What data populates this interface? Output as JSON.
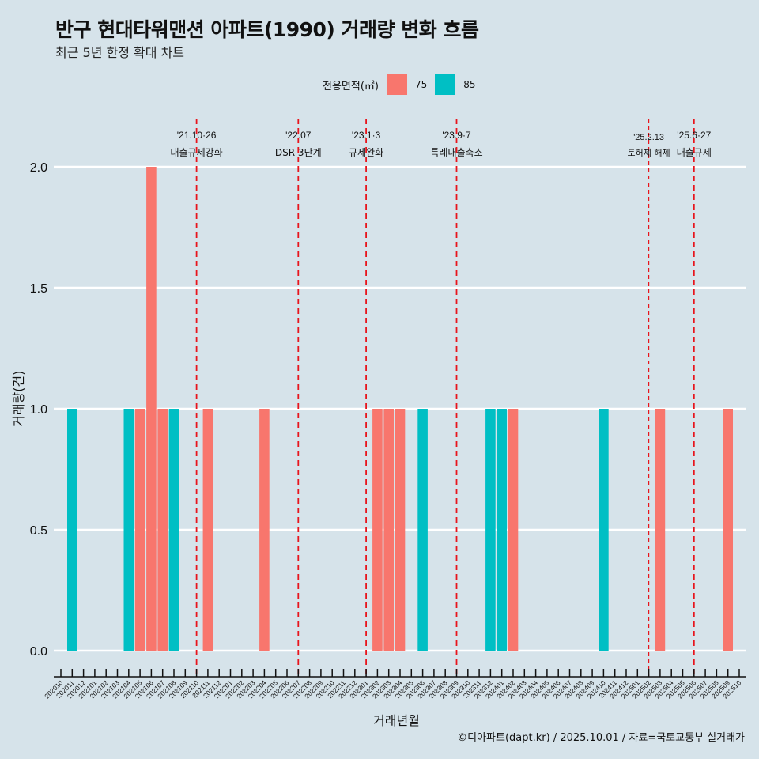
{
  "chart_data": {
    "type": "bar",
    "title": "반구 현대타워맨션 아파트(1990) 거래량 변화 흐름",
    "subtitle": "최근 5년 한정 확대 차트",
    "xlabel": "거래년월",
    "ylabel": "거래량(건)",
    "ylim": [
      0,
      2
    ],
    "yticks": [
      "0.0",
      "0.5",
      "1.0",
      "1.5",
      "2.0"
    ],
    "ytick_values": [
      0,
      0.5,
      1.0,
      1.5,
      2.0
    ],
    "grid": true,
    "legend": {
      "title": "전용면적(㎡)",
      "position": "top",
      "entries": [
        {
          "name": "75",
          "color": "#f8766d"
        },
        {
          "name": "85",
          "color": "#00bfc4"
        }
      ]
    },
    "categories": [
      "202010",
      "202011",
      "202012",
      "202101",
      "202102",
      "202103",
      "202104",
      "202105",
      "202106",
      "202107",
      "202108",
      "202109",
      "202110",
      "202111",
      "202112",
      "202201",
      "202202",
      "202203",
      "202204",
      "202205",
      "202206",
      "202207",
      "202208",
      "202209",
      "202210",
      "202211",
      "202212",
      "202301",
      "202302",
      "202303",
      "202304",
      "202305",
      "202306",
      "202307",
      "202308",
      "202309",
      "202310",
      "202311",
      "202312",
      "202401",
      "202402",
      "202403",
      "202404",
      "202405",
      "202406",
      "202407",
      "202408",
      "202409",
      "202410",
      "202411",
      "202412",
      "202501",
      "202502",
      "202503",
      "202504",
      "202505",
      "202506",
      "202507",
      "202508",
      "202509",
      "202510"
    ],
    "series": [
      {
        "name": "75",
        "color": "#f8766d",
        "points": [
          [
            "202105",
            1
          ],
          [
            "202106",
            2
          ],
          [
            "202107",
            1
          ],
          [
            "202111",
            1
          ],
          [
            "202204",
            1
          ],
          [
            "202302",
            1
          ],
          [
            "202303",
            1
          ],
          [
            "202304",
            1
          ],
          [
            "202402",
            1
          ],
          [
            "202503",
            1
          ],
          [
            "202509",
            1
          ]
        ]
      },
      {
        "name": "85",
        "color": "#00bfc4",
        "points": [
          [
            "202011",
            1
          ],
          [
            "202104",
            1
          ],
          [
            "202108",
            1
          ],
          [
            "202306",
            1
          ],
          [
            "202312",
            1
          ],
          [
            "202401",
            1
          ],
          [
            "202410",
            1
          ]
        ]
      }
    ],
    "annotations": [
      {
        "x": "202110",
        "date": "'21.10·26",
        "label": "대출규제강화",
        "style": "dashed"
      },
      {
        "x": "202207",
        "date": "'22.07",
        "label": "DSR 3단계",
        "style": "dashed"
      },
      {
        "x": "202301",
        "date": "'23.1·3",
        "label": "규제완화",
        "style": "dashed"
      },
      {
        "x": "202309",
        "date": "'23.9·7",
        "label": "특례대출축소",
        "style": "dashed"
      },
      {
        "x": "202502",
        "date": "'25.2.13",
        "label": "토허제 해제",
        "style": "thin-dashed"
      },
      {
        "x": "202506",
        "date": "'25.6·27",
        "label": "대출규제",
        "style": "dashed"
      }
    ],
    "caption": "©디아파트(dapt.kr) / 2025.10.01 / 자료=국토교통부 실거래가",
    "annotation_color": "#e8141c"
  }
}
